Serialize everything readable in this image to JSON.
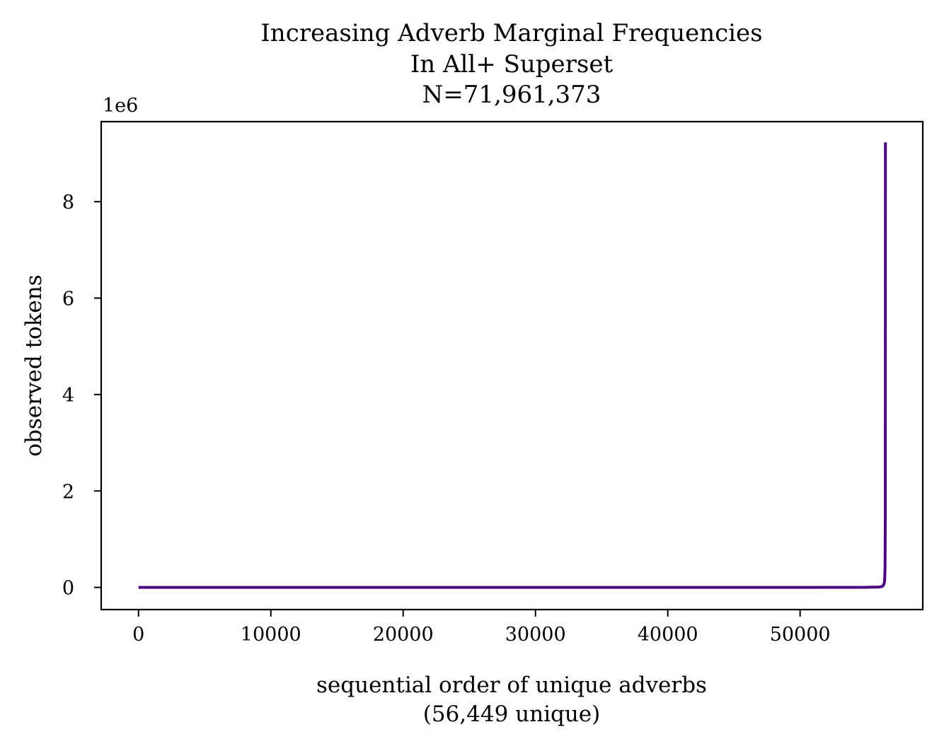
{
  "chart_data": {
    "type": "line",
    "title_lines": [
      "Increasing Adverb Marginal Frequencies",
      "In All+ Superset",
      "N=71,961,373"
    ],
    "xlabel_lines": [
      "sequential order of unique adverbs",
      "(56,449 unique)"
    ],
    "ylabel": "observed tokens",
    "y_offset_label": "1e6",
    "xlim": [
      -2822,
      59271
    ],
    "ylim": [
      -460000,
      9660000
    ],
    "x_ticks": [
      0,
      10000,
      20000,
      30000,
      40000,
      50000
    ],
    "x_tick_labels": [
      "0",
      "10000",
      "20000",
      "30000",
      "40000",
      "50000"
    ],
    "y_ticks": [
      0,
      2000000,
      4000000,
      6000000,
      8000000
    ],
    "y_tick_labels": [
      "0",
      "2",
      "4",
      "6",
      "8"
    ],
    "grid": false,
    "series": [
      {
        "color": "#4b0082",
        "x": [
          0,
          10000,
          20000,
          30000,
          40000,
          50000,
          55000,
          56000,
          56200,
          56300,
          56350,
          56390,
          56420,
          56440,
          56449
        ],
        "y": [
          1,
          2,
          4,
          8,
          20,
          200,
          1500,
          8000,
          20000,
          45000,
          80000,
          150000,
          400000,
          1500000,
          9230000
        ]
      }
    ]
  }
}
